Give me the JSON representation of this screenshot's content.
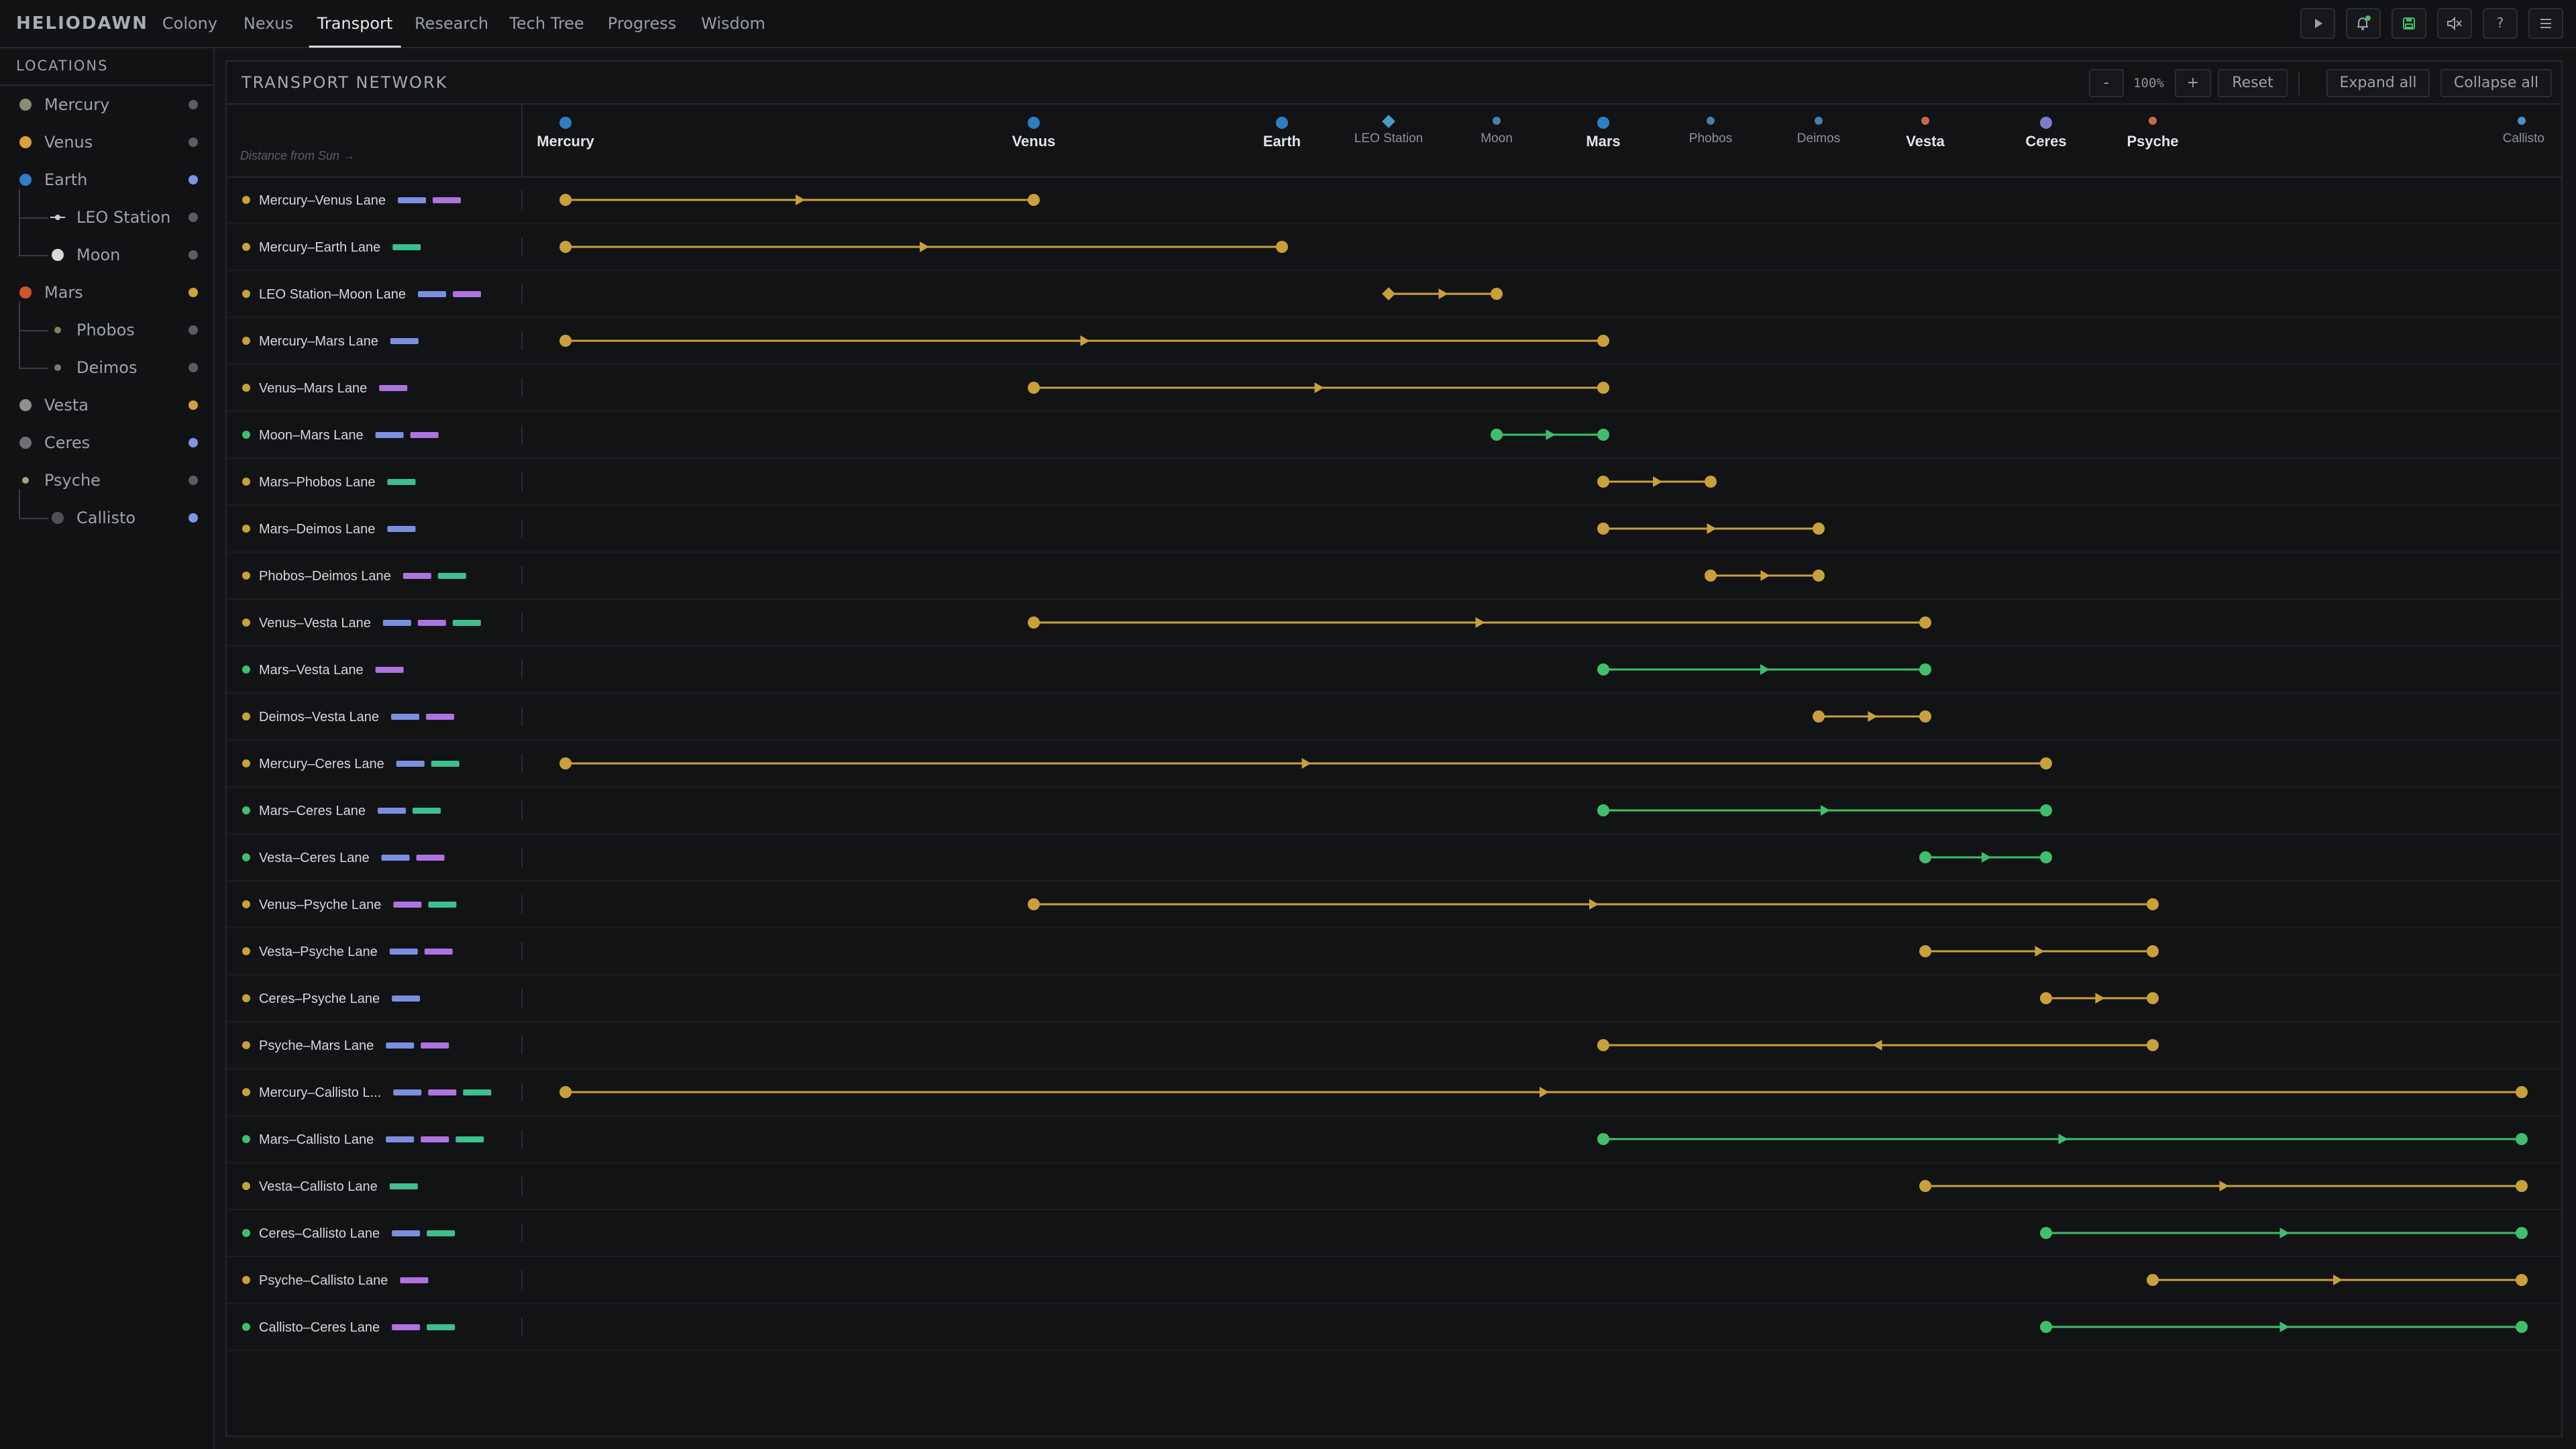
{
  "app": {
    "name": "HELIODAWN",
    "tabs": [
      {
        "label": "Colony",
        "active": false
      },
      {
        "label": "Nexus",
        "active": false
      },
      {
        "label": "Transport",
        "active": true
      },
      {
        "label": "Research",
        "active": false
      },
      {
        "label": "Tech Tree",
        "active": false
      },
      {
        "label": "Progress",
        "active": false
      },
      {
        "label": "Wisdom",
        "active": false
      }
    ],
    "toolbar_icons": [
      "play-icon",
      "bell-icon",
      "save-icon",
      "mute-icon",
      "help-icon",
      "menu-icon"
    ]
  },
  "sidebar": {
    "title": "LOCATIONS",
    "items": [
      {
        "label": "Mercury",
        "color": "#8b8a76",
        "status": "#5b5d62",
        "depth": 0,
        "marker": "dot"
      },
      {
        "label": "Venus",
        "color": "#d8a13e",
        "status": "#5b5d62",
        "depth": 0,
        "marker": "dot"
      },
      {
        "label": "Earth",
        "color": "#2e7fc4",
        "status": "#7f93e8",
        "depth": 0,
        "marker": "dot"
      },
      {
        "label": "LEO Station",
        "color": "#c9cbd0",
        "status": "#5b5d62",
        "depth": 1,
        "marker": "station"
      },
      {
        "label": "Moon",
        "color": "#d9d9d9",
        "status": "#5b5d62",
        "depth": 1,
        "marker": "dot"
      },
      {
        "label": "Mars",
        "color": "#d4532a",
        "status": "#d4a139",
        "depth": 0,
        "marker": "dot"
      },
      {
        "label": "Phobos",
        "color": "#8b7c57",
        "status": "#5b5d62",
        "depth": 1,
        "marker": "small"
      },
      {
        "label": "Deimos",
        "color": "#7a7a7a",
        "status": "#5b5d62",
        "depth": 1,
        "marker": "small"
      },
      {
        "label": "Vesta",
        "color": "#8e8e8e",
        "status": "#d4a139",
        "depth": 0,
        "marker": "dot"
      },
      {
        "label": "Ceres",
        "color": "#6f7075",
        "status": "#7f93e8",
        "depth": 0,
        "marker": "dot"
      },
      {
        "label": "Psyche",
        "color": "#a8a17a",
        "status": "#5b5d62",
        "depth": 0,
        "marker": "small"
      },
      {
        "label": "Callisto",
        "color": "#4f5054",
        "status": "#7f93e8",
        "depth": 1,
        "marker": "dot"
      }
    ]
  },
  "panel": {
    "title": "TRANSPORT NETWORK",
    "zoom_out": "-",
    "zoom_level": "100%",
    "zoom_in": "+",
    "reset": "Reset",
    "expand_all": "Expand all",
    "collapse_all": "Collapse all",
    "axis_hint": "Distance from Sun →"
  },
  "colors": {
    "gold": "#c9a03a",
    "green": "#3fbf6a",
    "chip_blue": "#7b8fe0",
    "chip_purple": "#b072e0",
    "chip_teal": "#3dbf8e"
  },
  "network": {
    "locations": [
      {
        "name": "Mercury",
        "pos": 0,
        "marker": "big",
        "color": "#2e7fc4",
        "bold": true
      },
      {
        "name": "Venus",
        "pos": 1,
        "marker": "big",
        "color": "#2e7fc4",
        "bold": true
      },
      {
        "name": "Earth",
        "pos": 2,
        "marker": "big",
        "color": "#2e7fc4",
        "bold": true
      },
      {
        "name": "LEO Station",
        "pos": 3,
        "marker": "diamond",
        "color": "#4a9ac8",
        "bold": false
      },
      {
        "name": "Moon",
        "pos": 4,
        "marker": "small",
        "color": "#4a7fa8",
        "bold": false
      },
      {
        "name": "Mars",
        "pos": 5,
        "marker": "big",
        "color": "#2e7fc4",
        "bold": true
      },
      {
        "name": "Phobos",
        "pos": 6,
        "marker": "small",
        "color": "#4a7fa8",
        "bold": false
      },
      {
        "name": "Deimos",
        "pos": 7,
        "marker": "small",
        "color": "#4a7fa8",
        "bold": false
      },
      {
        "name": "Vesta",
        "pos": 8,
        "marker": "small",
        "color": "#c86a4a",
        "bold": true
      },
      {
        "name": "Ceres",
        "pos": 9,
        "marker": "big",
        "color": "#7c7fc8",
        "bold": true
      },
      {
        "name": "Psyche",
        "pos": 10,
        "marker": "small",
        "color": "#c86a4a",
        "bold": true
      },
      {
        "name": "Callisto",
        "pos": 11,
        "marker": "small",
        "color": "#4a8fc8",
        "bold": false
      }
    ],
    "lanes": [
      {
        "label": "Mercury–Venus Lane",
        "from": "Mercury",
        "to": "Venus",
        "color": "gold",
        "chips": [
          "blue",
          "purple"
        ],
        "dir": "forward"
      },
      {
        "label": "Mercury–Earth Lane",
        "from": "Mercury",
        "to": "Earth",
        "color": "gold",
        "chips": [
          "teal"
        ],
        "dir": "forward"
      },
      {
        "label": "LEO Station–Moon Lane",
        "from": "LEO Station",
        "to": "Moon",
        "color": "gold",
        "chips": [
          "blue",
          "purple"
        ],
        "dir": "forward",
        "start_marker": "diamond"
      },
      {
        "label": "Mercury–Mars Lane",
        "from": "Mercury",
        "to": "Mars",
        "color": "gold",
        "chips": [
          "blue"
        ],
        "dir": "forward"
      },
      {
        "label": "Venus–Mars Lane",
        "from": "Venus",
        "to": "Mars",
        "color": "gold",
        "chips": [
          "purple"
        ],
        "dir": "forward"
      },
      {
        "label": "Moon–Mars Lane",
        "from": "Moon",
        "to": "Mars",
        "color": "green",
        "chips": [
          "blue",
          "purple"
        ],
        "dir": "forward"
      },
      {
        "label": "Mars–Phobos Lane",
        "from": "Mars",
        "to": "Phobos",
        "color": "gold",
        "chips": [
          "teal"
        ],
        "dir": "forward"
      },
      {
        "label": "Mars–Deimos Lane",
        "from": "Mars",
        "to": "Deimos",
        "color": "gold",
        "chips": [
          "blue"
        ],
        "dir": "forward"
      },
      {
        "label": "Phobos–Deimos Lane",
        "from": "Phobos",
        "to": "Deimos",
        "color": "gold",
        "chips": [
          "purple",
          "teal"
        ],
        "dir": "forward"
      },
      {
        "label": "Venus–Vesta Lane",
        "from": "Venus",
        "to": "Vesta",
        "color": "gold",
        "chips": [
          "blue",
          "purple",
          "teal"
        ],
        "dir": "forward"
      },
      {
        "label": "Mars–Vesta Lane",
        "from": "Mars",
        "to": "Vesta",
        "color": "green",
        "chips": [
          "purple"
        ],
        "dir": "forward"
      },
      {
        "label": "Deimos–Vesta Lane",
        "from": "Deimos",
        "to": "Vesta",
        "color": "gold",
        "chips": [
          "blue",
          "purple"
        ],
        "dir": "forward"
      },
      {
        "label": "Mercury–Ceres Lane",
        "from": "Mercury",
        "to": "Ceres",
        "color": "gold",
        "chips": [
          "blue",
          "teal"
        ],
        "dir": "forward"
      },
      {
        "label": "Mars–Ceres Lane",
        "from": "Mars",
        "to": "Ceres",
        "color": "green",
        "chips": [
          "blue",
          "teal"
        ],
        "dir": "forward"
      },
      {
        "label": "Vesta–Ceres Lane",
        "from": "Vesta",
        "to": "Ceres",
        "color": "green",
        "chips": [
          "blue",
          "purple"
        ],
        "dir": "forward"
      },
      {
        "label": "Venus–Psyche Lane",
        "from": "Venus",
        "to": "Psyche",
        "color": "gold",
        "chips": [
          "purple",
          "teal"
        ],
        "dir": "forward"
      },
      {
        "label": "Vesta–Psyche Lane",
        "from": "Vesta",
        "to": "Psyche",
        "color": "gold",
        "chips": [
          "blue",
          "purple"
        ],
        "dir": "forward"
      },
      {
        "label": "Ceres–Psyche Lane",
        "from": "Ceres",
        "to": "Psyche",
        "color": "gold",
        "chips": [
          "blue"
        ],
        "dir": "forward"
      },
      {
        "label": "Psyche–Mars Lane",
        "from": "Psyche",
        "to": "Mars",
        "color": "gold",
        "chips": [
          "blue",
          "purple"
        ],
        "dir": "backward"
      },
      {
        "label": "Mercury–Callisto L...",
        "from": "Mercury",
        "to": "Callisto",
        "color": "gold",
        "chips": [
          "blue",
          "purple",
          "teal"
        ],
        "dir": "forward"
      },
      {
        "label": "Mars–Callisto Lane",
        "from": "Mars",
        "to": "Callisto",
        "color": "green",
        "chips": [
          "blue",
          "purple",
          "teal"
        ],
        "dir": "forward"
      },
      {
        "label": "Vesta–Callisto Lane",
        "from": "Vesta",
        "to": "Callisto",
        "color": "gold",
        "chips": [
          "teal"
        ],
        "dir": "forward"
      },
      {
        "label": "Ceres–Callisto Lane",
        "from": "Ceres",
        "to": "Callisto",
        "color": "green",
        "chips": [
          "blue",
          "teal"
        ],
        "dir": "forward"
      },
      {
        "label": "Psyche–Callisto Lane",
        "from": "Psyche",
        "to": "Callisto",
        "color": "gold",
        "chips": [
          "purple"
        ],
        "dir": "forward"
      },
      {
        "label": "Callisto–Ceres Lane",
        "from": "Callisto",
        "to": "Ceres",
        "color": "green",
        "chips": [
          "purple",
          "teal"
        ],
        "dir": "forward"
      }
    ]
  }
}
